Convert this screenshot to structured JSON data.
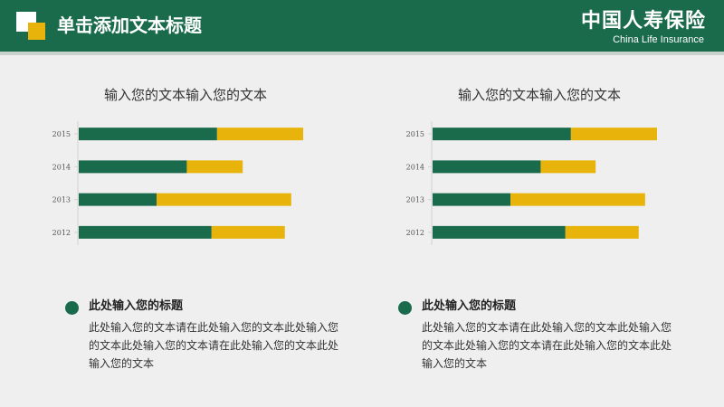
{
  "header": {
    "title": "单击添加文本标题",
    "brand_cn": "中国人寿保险",
    "brand_en": "China Life Insurance"
  },
  "colors": {
    "green": "#1a6b4c",
    "gold": "#e8b40b",
    "background": "#efefef"
  },
  "chart_data": [
    {
      "type": "bar",
      "orientation": "horizontal",
      "stacked": true,
      "title": "输入您的文本输入您的文本",
      "categories": [
        "2015",
        "2014",
        "2013",
        "2012"
      ],
      "series": [
        {
          "values": [
            151,
            118,
            85,
            145
          ]
        },
        {
          "values": [
            94,
            61,
            147,
            80
          ]
        }
      ],
      "xlim": [
        0,
        245
      ],
      "grid": false,
      "legend": "none"
    },
    {
      "type": "bar",
      "orientation": "horizontal",
      "stacked": true,
      "title": "输入您的文本输入您的文本",
      "categories": [
        "2015",
        "2014",
        "2013",
        "2012"
      ],
      "series": [
        {
          "values": [
            151,
            118,
            85,
            145
          ]
        },
        {
          "values": [
            94,
            60,
            147,
            80
          ]
        }
      ],
      "xlim": [
        0,
        245
      ],
      "grid": false,
      "legend": "none"
    }
  ],
  "text_blocks": [
    {
      "title": "此处输入您的标题",
      "body": "此处输入您的文本请在此处输入您的文本此处输入您的文本此处输入您的文本请在此处输入您的文本此处输入您的文本"
    },
    {
      "title": "此处输入您的标题",
      "body": "此处输入您的文本请在此处输入您的文本此处输入您的文本此处输入您的文本请在此处输入您的文本此处输入您的文本"
    }
  ]
}
